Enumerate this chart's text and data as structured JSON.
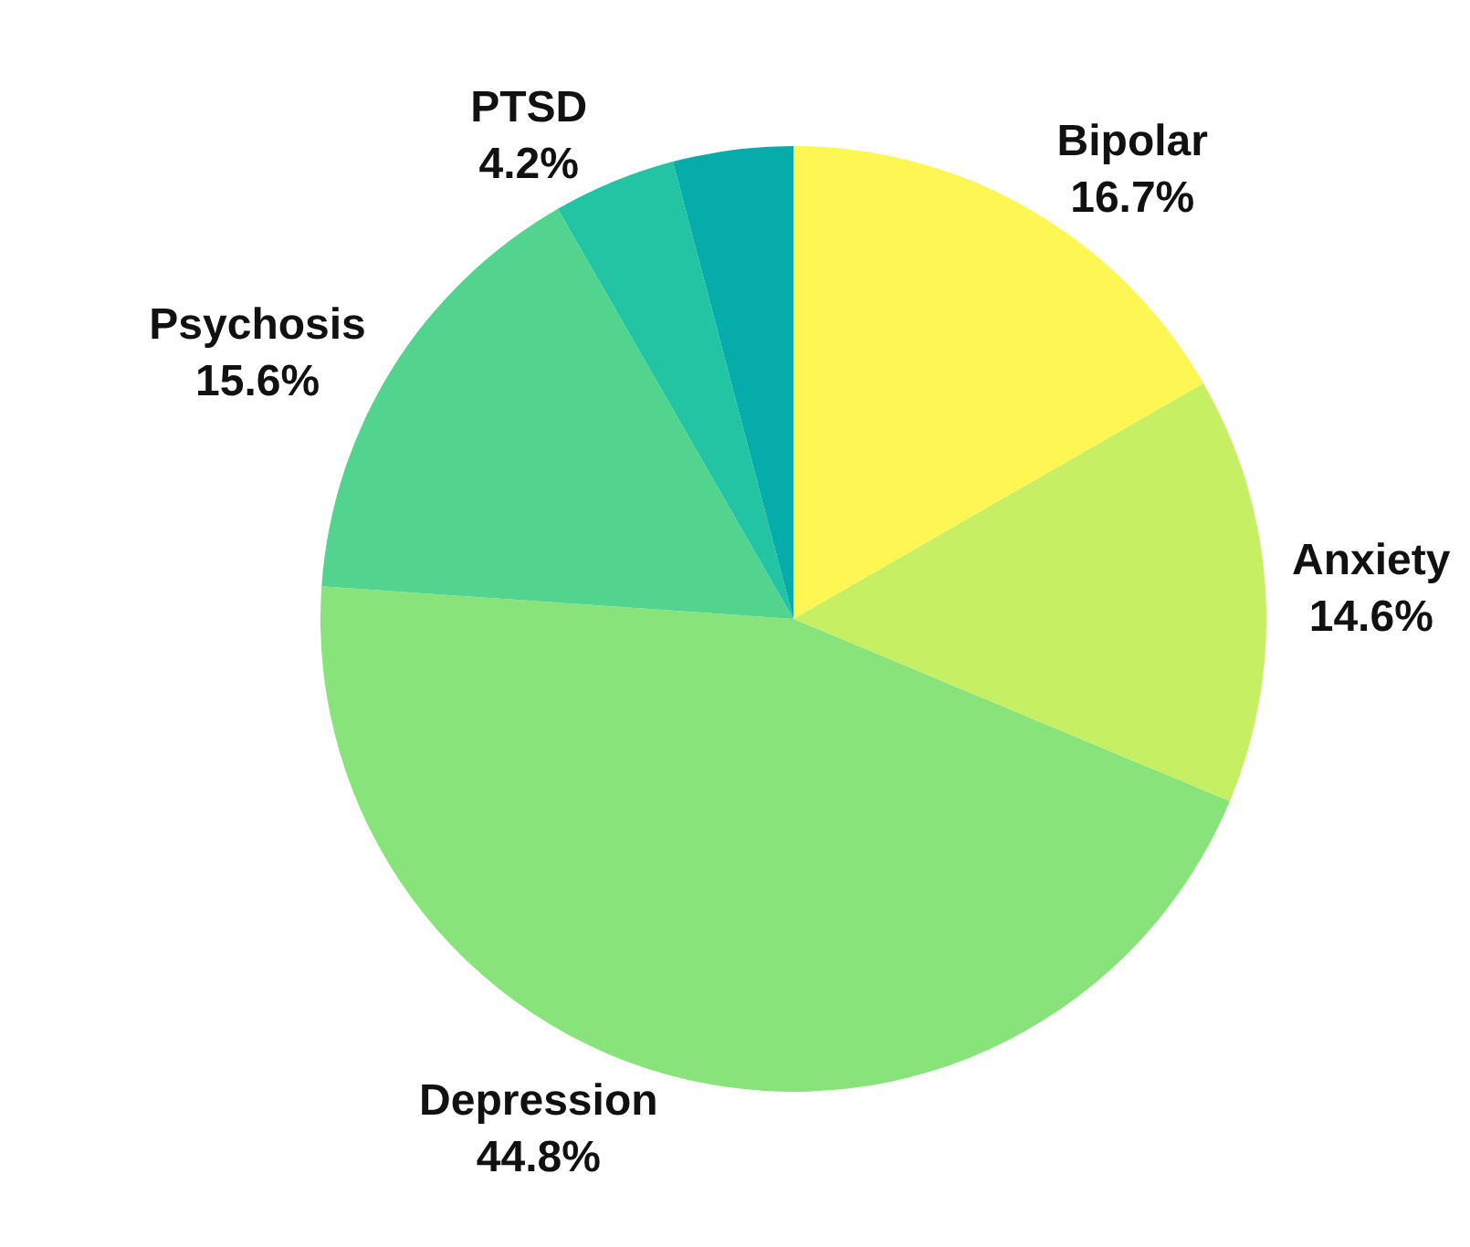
{
  "chart_data": {
    "type": "pie",
    "categories": [
      "Bipolar",
      "Anxiety",
      "Depression",
      "Psychosis",
      "PTSD",
      null
    ],
    "values": [
      16.7,
      14.6,
      44.8,
      15.6,
      4.2,
      4.1
    ],
    "value_labels": [
      "16.7%",
      "14.6%",
      "44.8%",
      "15.6%",
      "4.2%",
      null
    ],
    "colors": [
      "#fef653",
      "#c6ef63",
      "#89e37b",
      "#52d48f",
      "#22c4a3",
      "#05aca9"
    ],
    "legend": false
  }
}
